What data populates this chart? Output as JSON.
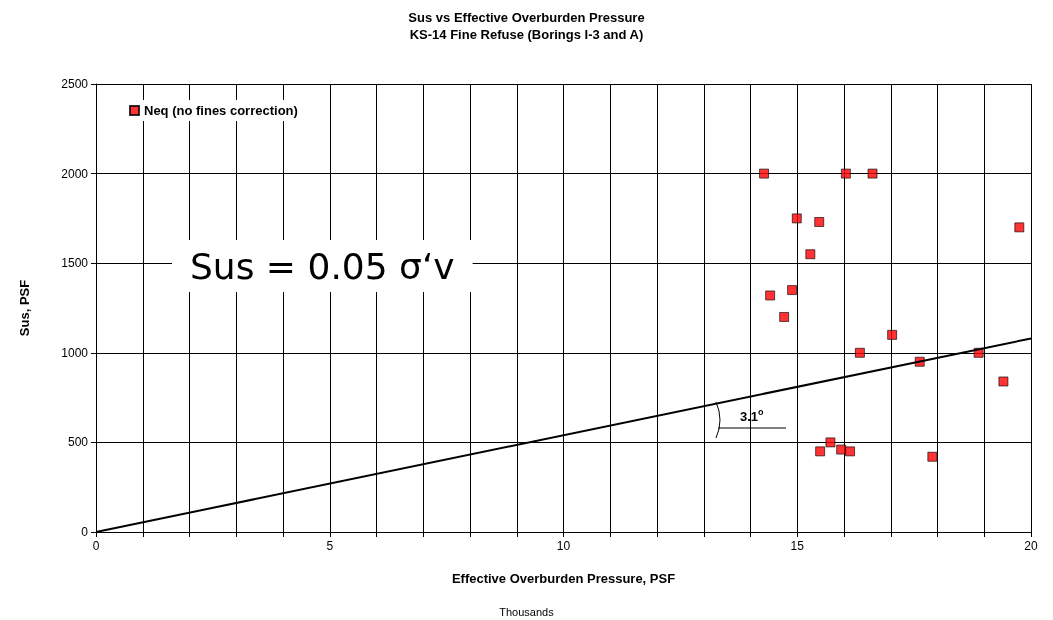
{
  "chart_data": {
    "type": "scatter",
    "title": "Sus vs Effective Overburden Pressure",
    "subtitle": "KS-14 Fine Refuse (Borings I-3 and A)",
    "xlabel": "Effective Overburden Pressure, PSF",
    "ylabel": "Sus, PSF",
    "annotations": [
      "Sus = 0.05 σ‘v",
      "Thousands",
      "3.1$^{o}$"
    ],
    "series": [
      {
        "name": "Neq (no fines correction)",
        "color": "#ff0000",
        "marker": "square",
        "x": [
          14.29,
          16.04,
          16.61,
          14.99,
          15.47,
          19.75,
          15.28,
          14.89,
          14.42,
          14.72,
          17.03,
          16.34,
          17.62,
          18.88,
          19.41,
          15.71,
          15.49,
          15.94,
          16.13,
          17.89
        ],
        "values": [
          2000,
          2000,
          2000,
          1750,
          1730,
          1700,
          1550,
          1350,
          1320,
          1200,
          1100,
          1000,
          950,
          1000,
          840,
          500,
          450,
          460,
          450,
          420
        ]
      },
      {
        "type": "line",
        "color": "#000000",
        "marker": "none",
        "line_style": "solid",
        "x": [
          0,
          20
        ],
        "values": [
          0,
          1080
        ]
      }
    ],
    "xlim": [
      0,
      20
    ],
    "ylim": [
      0,
      2500
    ],
    "xticks": [
      0,
      {
        "value": 1,
        "label": null
      },
      {
        "value": 2,
        "label": null
      },
      {
        "value": 3,
        "label": null
      },
      {
        "value": 4,
        "label": null
      },
      5,
      {
        "value": 6,
        "label": null
      },
      {
        "value": 7,
        "label": null
      },
      {
        "value": 8,
        "label": null
      },
      {
        "value": 9,
        "label": null
      },
      10,
      {
        "value": 11,
        "label": null
      },
      {
        "value": 12,
        "label": null
      },
      {
        "value": 13,
        "label": null
      },
      {
        "value": 14,
        "label": null
      },
      15,
      {
        "value": 16,
        "label": null
      },
      {
        "value": 17,
        "label": null
      },
      {
        "value": 18,
        "label": null
      },
      {
        "value": 19,
        "label": null
      },
      20
    ],
    "yticks": [
      0,
      500,
      1000,
      1500,
      2000,
      2500
    ],
    "grid": true,
    "legend": "top left"
  }
}
